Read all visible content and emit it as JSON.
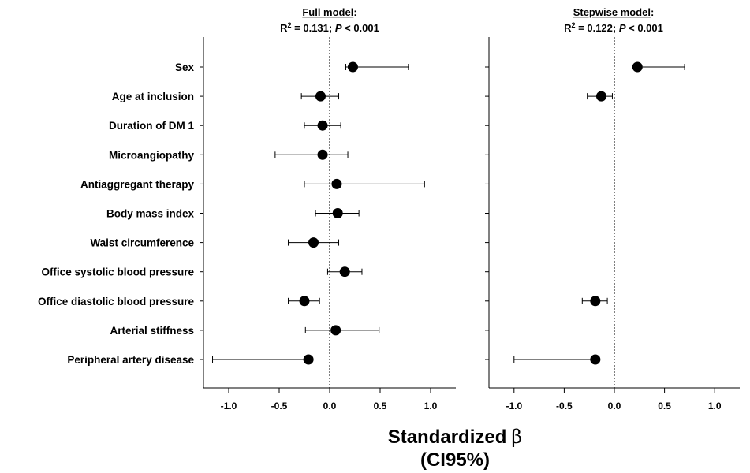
{
  "colors": {
    "ink": "#000000",
    "background": "#ffffff"
  },
  "xlabel": {
    "line1_text": "Standardized",
    "beta_symbol": "β",
    "line2": "(CI95%)"
  },
  "chart_data": [
    {
      "type": "forest",
      "heading": {
        "title": "Full model",
        "title_suffix": ":",
        "r2_label": "R",
        "r2_sup": "2",
        "r2_value_text": " = 0.131; ",
        "p_label": "P",
        "p_value_text": " < 0.001"
      },
      "xlim": [
        -1.25,
        1.25
      ],
      "xticks": [
        -1.0,
        -0.5,
        0.0,
        0.5,
        1.0
      ],
      "xtick_labels": [
        "-1.0",
        "-0.5",
        "0.0",
        "0.5",
        "1.0"
      ],
      "reference_line": 0,
      "categories": [
        "Sex",
        "Age at inclusion",
        "Duration of DM 1",
        "Microangiopathy",
        "Antiaggregant therapy",
        "Body mass index",
        "Waist circumference",
        "Office systolic blood pressure",
        "Office diastolic blood pressure",
        "Arterial stiffness",
        "Peripheral artery disease"
      ],
      "estimates": [
        {
          "name": "Sex",
          "beta": 0.23,
          "lower": 0.16,
          "upper": 0.78
        },
        {
          "name": "Age at inclusion",
          "beta": -0.09,
          "lower": -0.28,
          "upper": 0.09
        },
        {
          "name": "Duration of DM 1",
          "beta": -0.07,
          "lower": -0.25,
          "upper": 0.11
        },
        {
          "name": "Microangiopathy",
          "beta": -0.07,
          "lower": -0.54,
          "upper": 0.18
        },
        {
          "name": "Antiaggregant therapy",
          "beta": 0.07,
          "lower": -0.25,
          "upper": 0.94
        },
        {
          "name": "Body mass index",
          "beta": 0.08,
          "lower": -0.14,
          "upper": 0.29
        },
        {
          "name": "Waist circumference",
          "beta": -0.16,
          "lower": -0.41,
          "upper": 0.09
        },
        {
          "name": "Office systolic blood pressure",
          "beta": 0.15,
          "lower": -0.02,
          "upper": 0.32
        },
        {
          "name": "Office diastolic blood pressure",
          "beta": -0.25,
          "lower": -0.41,
          "upper": -0.1
        },
        {
          "name": "Arterial stiffness",
          "beta": 0.06,
          "lower": -0.24,
          "upper": 0.49
        },
        {
          "name": "Peripheral artery disease",
          "beta": -0.21,
          "lower": -1.16,
          "upper": -0.21
        }
      ]
    },
    {
      "type": "forest",
      "heading": {
        "title": "Stepwise model",
        "title_suffix": ":",
        "r2_label": "R",
        "r2_sup": "2",
        "r2_value_text": " = 0.122; ",
        "p_label": "P",
        "p_value_text": " < 0.001"
      },
      "xlim": [
        -1.25,
        1.25
      ],
      "xticks": [
        -1.0,
        -0.5,
        0.0,
        0.5,
        1.0
      ],
      "xtick_labels": [
        "-1.0",
        "-0.5",
        "0.0",
        "0.5",
        "1.0"
      ],
      "reference_line": 0,
      "categories": [
        "Sex",
        "Age at inclusion",
        "Duration of DM 1",
        "Microangiopathy",
        "Antiaggregant therapy",
        "Body mass index",
        "Waist circumference",
        "Office systolic blood pressure",
        "Office diastolic blood pressure",
        "Arterial stiffness",
        "Peripheral artery disease"
      ],
      "estimates": [
        {
          "name": "Sex",
          "beta": 0.23,
          "lower": 0.23,
          "upper": 0.7
        },
        {
          "name": "Age at inclusion",
          "beta": -0.13,
          "lower": -0.27,
          "upper": -0.02
        },
        {
          "name": "Office diastolic blood pressure",
          "beta": -0.19,
          "lower": -0.32,
          "upper": -0.07
        },
        {
          "name": "Peripheral artery disease",
          "beta": -0.19,
          "lower": -1.0,
          "upper": -0.19
        }
      ]
    }
  ]
}
